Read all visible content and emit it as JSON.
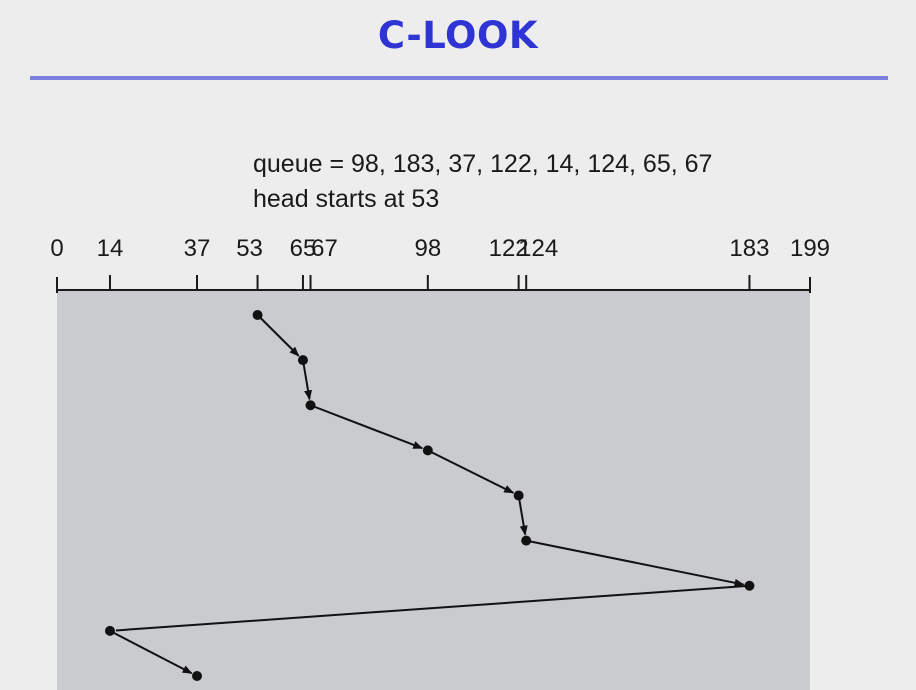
{
  "slide": {
    "title": "C-LOOK"
  },
  "info": {
    "queue_text": "queue = 98, 183, 37, 122, 14, 124, 65, 67",
    "head_text": "head starts at 53"
  },
  "axis": {
    "min": 0,
    "max": 199,
    "ticks": [
      {
        "value": 0,
        "label": "0"
      },
      {
        "value": 14,
        "label": "14"
      },
      {
        "value": 37,
        "label": "37"
      },
      {
        "value": 53,
        "label": "53"
      },
      {
        "value": 65,
        "label": "65"
      },
      {
        "value": 67,
        "label": "67"
      },
      {
        "value": 98,
        "label": "98"
      },
      {
        "value": 122,
        "label": "122"
      },
      {
        "value": 124,
        "label": "124"
      },
      {
        "value": 183,
        "label": "183"
      },
      {
        "value": 199,
        "label": "199"
      }
    ]
  },
  "path": {
    "sequence": [
      53,
      65,
      67,
      98,
      122,
      124,
      183,
      14,
      37
    ],
    "arrowheads": [
      true,
      true,
      true,
      true,
      true,
      true,
      false,
      true
    ]
  },
  "colors": {
    "title": "#2f35d4",
    "rule": "#7b7fe0",
    "plot_background": "#c9cbce",
    "line": "#111111"
  }
}
